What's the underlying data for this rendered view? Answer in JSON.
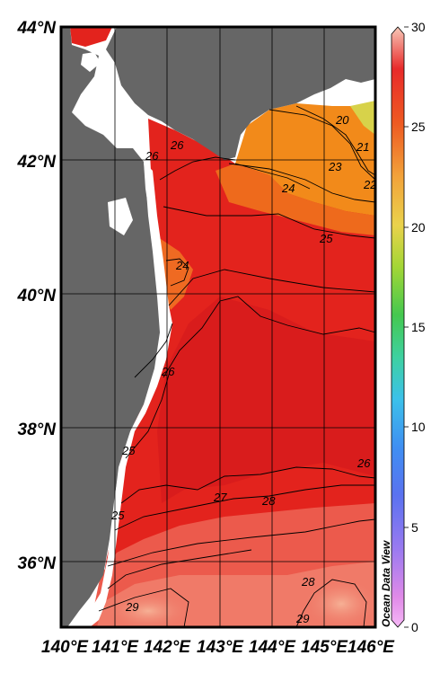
{
  "map": {
    "lat_labels": [
      "44°N",
      "42°N",
      "40°N",
      "38°N",
      "36°N"
    ],
    "lon_labels": [
      "140°E",
      "141°E",
      "142°E",
      "143°E",
      "144°E",
      "145°E",
      "146°E"
    ],
    "contour_labels": [
      "20",
      "21",
      "22",
      "23",
      "24",
      "25",
      "26",
      "26",
      "24",
      "26",
      "25",
      "25",
      "26",
      "27",
      "28",
      "28",
      "29",
      "29"
    ],
    "watermark": "Ocean Data View",
    "colors": {
      "land": "#666666",
      "warm_sea": "#e3231d",
      "hot_sea": "#f0756a",
      "cool_sea": "#f28a1a"
    }
  },
  "colorbar": {
    "tick_labels": [
      "30",
      "25",
      "20",
      "15",
      "10",
      "5",
      "0"
    ]
  }
}
